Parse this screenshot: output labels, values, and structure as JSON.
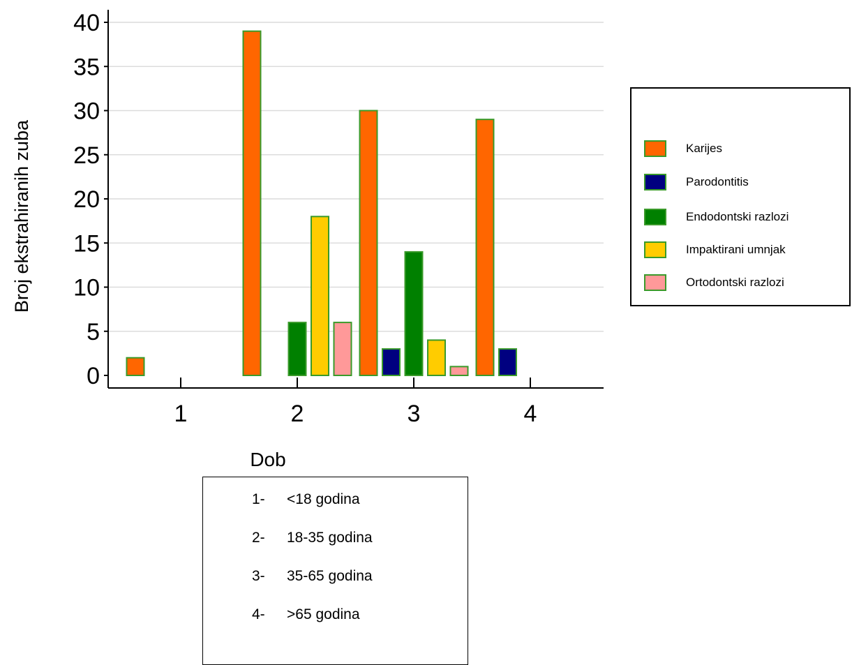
{
  "chart_data": {
    "type": "bar",
    "categories": [
      "1",
      "2",
      "3",
      "4"
    ],
    "series": [
      {
        "name": "Karijes",
        "color": "#ff6600",
        "values": [
          2,
          39,
          30,
          29
        ]
      },
      {
        "name": "Parodontitis",
        "color": "#000080",
        "values": [
          0,
          0,
          3,
          3
        ]
      },
      {
        "name": "Endodontski razlozi",
        "color": "#008000",
        "values": [
          0,
          6,
          14,
          0
        ]
      },
      {
        "name": "Impaktirani umnjak",
        "color": "#ffcc00",
        "values": [
          0,
          18,
          4,
          0
        ]
      },
      {
        "name": "Ortodontski razlozi",
        "color": "#ff9999",
        "values": [
          0,
          6,
          1,
          0
        ]
      }
    ],
    "xlabel": "Dob",
    "ylabel": "Broj ekstrahiranih zuba",
    "ylim": [
      0,
      40
    ],
    "yticks": [
      "0",
      "5",
      "10",
      "15",
      "20",
      "25",
      "30",
      "35",
      "40"
    ],
    "grid": true,
    "legend_position": "right"
  },
  "legend": [
    {
      "label": "Karijes",
      "color": "#ff6600"
    },
    {
      "label": "Parodontitis",
      "color": "#000080"
    },
    {
      "label": "Endodontski razlozi",
      "color": "#008000"
    },
    {
      "label": "Impaktirani umnjak",
      "color": "#ffcc00"
    },
    {
      "label": " Ortodontski razlozi",
      "color": "#ff9999"
    }
  ],
  "age_groups": [
    {
      "num": "1-",
      "label": "<18 godina"
    },
    {
      "num": "2-",
      "label": "18-35 godina"
    },
    {
      "num": "3-",
      "label": "35-65 godina"
    },
    {
      "num": "4-",
      "label": ">65 godina"
    }
  ]
}
